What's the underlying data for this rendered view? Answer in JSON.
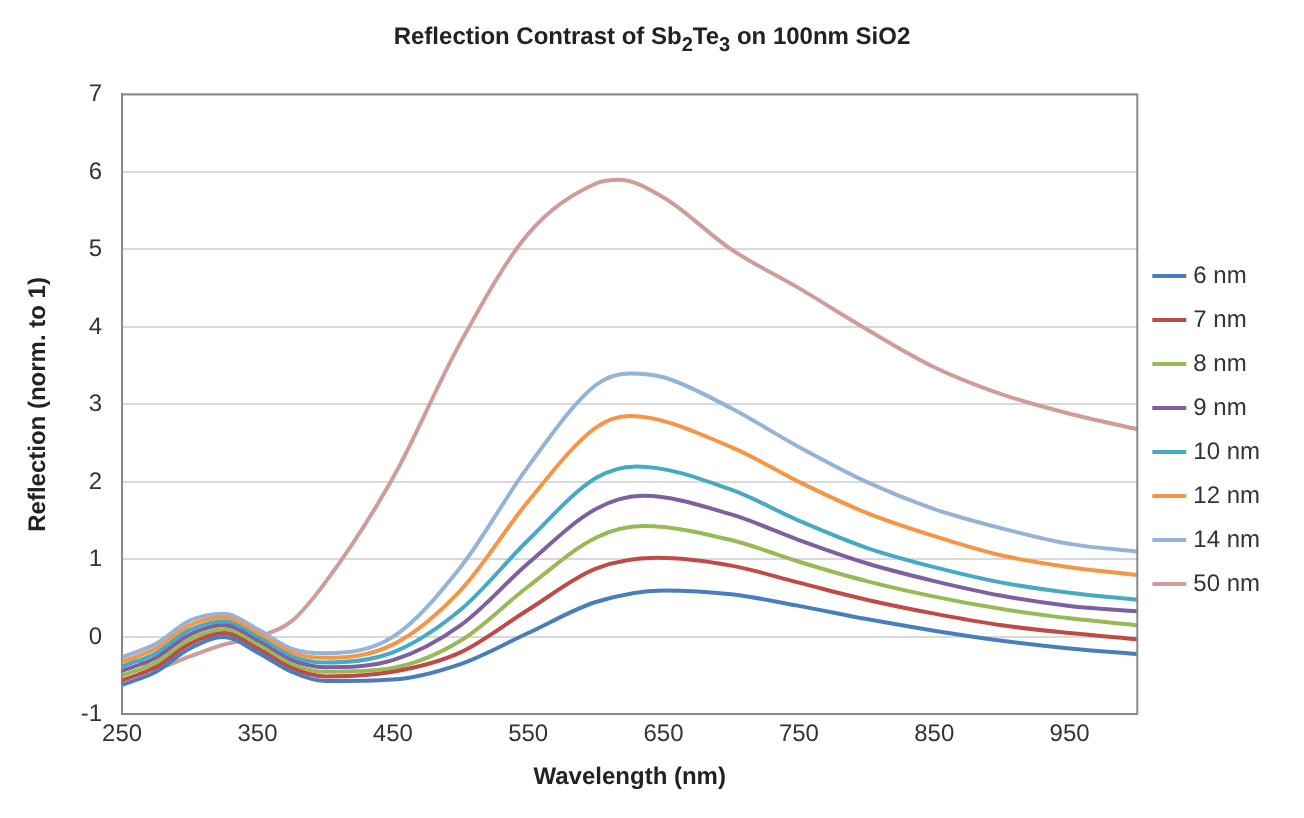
{
  "chart_data": {
    "type": "line",
    "title": "Reflection Contrast of Sb$_{2}$Te$_{3}$ on 100nm SiO2",
    "xlabel": "Wavelength (nm)",
    "ylabel": "Reflection (norm. to 1)",
    "xlim": [
      250,
      1000
    ],
    "xticks": [
      250,
      350,
      450,
      550,
      650,
      750,
      850,
      950
    ],
    "ylim": [
      -1,
      7
    ],
    "yticks": [
      -1,
      0,
      1,
      2,
      3,
      4,
      5,
      6,
      7
    ],
    "grid": "y",
    "legend": "right",
    "marker": "none",
    "line_style": "solid",
    "series": [
      {
        "name": "6 nm",
        "color": "#4a7ebb",
        "x": [
          250,
          275,
          300,
          325,
          350,
          375,
          400,
          450,
          500,
          550,
          600,
          650,
          700,
          750,
          800,
          850,
          900,
          950,
          1000
        ],
        "values": [
          -0.62,
          -0.45,
          -0.15,
          0.0,
          -0.2,
          -0.45,
          -0.57,
          -0.55,
          -0.35,
          0.05,
          0.45,
          0.6,
          0.55,
          0.4,
          0.23,
          0.08,
          -0.05,
          -0.15,
          -0.22
        ]
      },
      {
        "name": "7 nm",
        "color": "#be4b48",
        "x": [
          250,
          275,
          300,
          325,
          350,
          375,
          400,
          450,
          500,
          550,
          600,
          645,
          700,
          750,
          800,
          850,
          900,
          950,
          1000
        ],
        "values": [
          -0.56,
          -0.39,
          -0.09,
          0.05,
          -0.15,
          -0.4,
          -0.51,
          -0.45,
          -0.2,
          0.35,
          0.88,
          1.02,
          0.92,
          0.7,
          0.48,
          0.3,
          0.15,
          0.05,
          -0.03
        ]
      },
      {
        "name": "8 nm",
        "color": "#98b954",
        "x": [
          250,
          275,
          300,
          325,
          350,
          375,
          400,
          450,
          500,
          550,
          600,
          635,
          700,
          750,
          800,
          850,
          900,
          950,
          1000
        ],
        "values": [
          -0.5,
          -0.33,
          -0.03,
          0.1,
          -0.1,
          -0.35,
          -0.45,
          -0.4,
          -0.05,
          0.65,
          1.28,
          1.43,
          1.25,
          0.97,
          0.72,
          0.52,
          0.36,
          0.24,
          0.15
        ]
      },
      {
        "name": "9 nm",
        "color": "#7d60a0",
        "x": [
          250,
          275,
          300,
          325,
          350,
          375,
          400,
          450,
          500,
          550,
          600,
          635,
          700,
          750,
          800,
          850,
          900,
          950,
          1000
        ],
        "values": [
          -0.44,
          -0.27,
          0.03,
          0.15,
          -0.05,
          -0.3,
          -0.39,
          -0.3,
          0.15,
          0.95,
          1.65,
          1.82,
          1.58,
          1.25,
          0.95,
          0.72,
          0.53,
          0.4,
          0.33
        ]
      },
      {
        "name": "10 nm",
        "color": "#46aac5",
        "x": [
          250,
          275,
          300,
          325,
          350,
          375,
          400,
          450,
          500,
          550,
          600,
          630,
          700,
          750,
          800,
          850,
          900,
          950,
          1000
        ],
        "values": [
          -0.38,
          -0.21,
          0.09,
          0.2,
          0.0,
          -0.25,
          -0.33,
          -0.2,
          0.35,
          1.25,
          2.05,
          2.2,
          1.9,
          1.5,
          1.15,
          0.9,
          0.7,
          0.57,
          0.48
        ]
      },
      {
        "name": "12 nm",
        "color": "#f69545",
        "x": [
          250,
          275,
          300,
          325,
          350,
          375,
          400,
          450,
          500,
          550,
          600,
          625,
          700,
          750,
          800,
          850,
          900,
          950,
          1000
        ],
        "values": [
          -0.32,
          -0.15,
          0.15,
          0.25,
          0.05,
          -0.2,
          -0.27,
          -0.1,
          0.6,
          1.75,
          2.7,
          2.85,
          2.45,
          2.0,
          1.6,
          1.3,
          1.05,
          0.9,
          0.8
        ]
      },
      {
        "name": "14 nm",
        "color": "#95b3d7",
        "x": [
          250,
          275,
          300,
          325,
          350,
          375,
          400,
          450,
          500,
          550,
          600,
          625,
          650,
          700,
          750,
          800,
          850,
          900,
          950,
          1000
        ],
        "values": [
          -0.26,
          -0.09,
          0.21,
          0.3,
          0.1,
          -0.15,
          -0.21,
          0.0,
          0.9,
          2.2,
          3.25,
          3.4,
          3.35,
          2.95,
          2.45,
          2.0,
          1.65,
          1.4,
          1.2,
          1.1
        ]
      },
      {
        "name": "50 nm",
        "color": "#d09c9a",
        "x": [
          250,
          260,
          275,
          300,
          325,
          350,
          375,
          400,
          450,
          500,
          550,
          600,
          617,
          650,
          700,
          750,
          800,
          850,
          900,
          950,
          1000
        ],
        "values": [
          -0.4,
          -0.3,
          -0.4,
          -0.25,
          -0.1,
          0.0,
          0.2,
          0.7,
          2.05,
          3.8,
          5.2,
          5.85,
          5.9,
          5.67,
          5.0,
          4.5,
          3.97,
          3.48,
          3.13,
          2.88,
          2.68
        ]
      }
    ]
  }
}
